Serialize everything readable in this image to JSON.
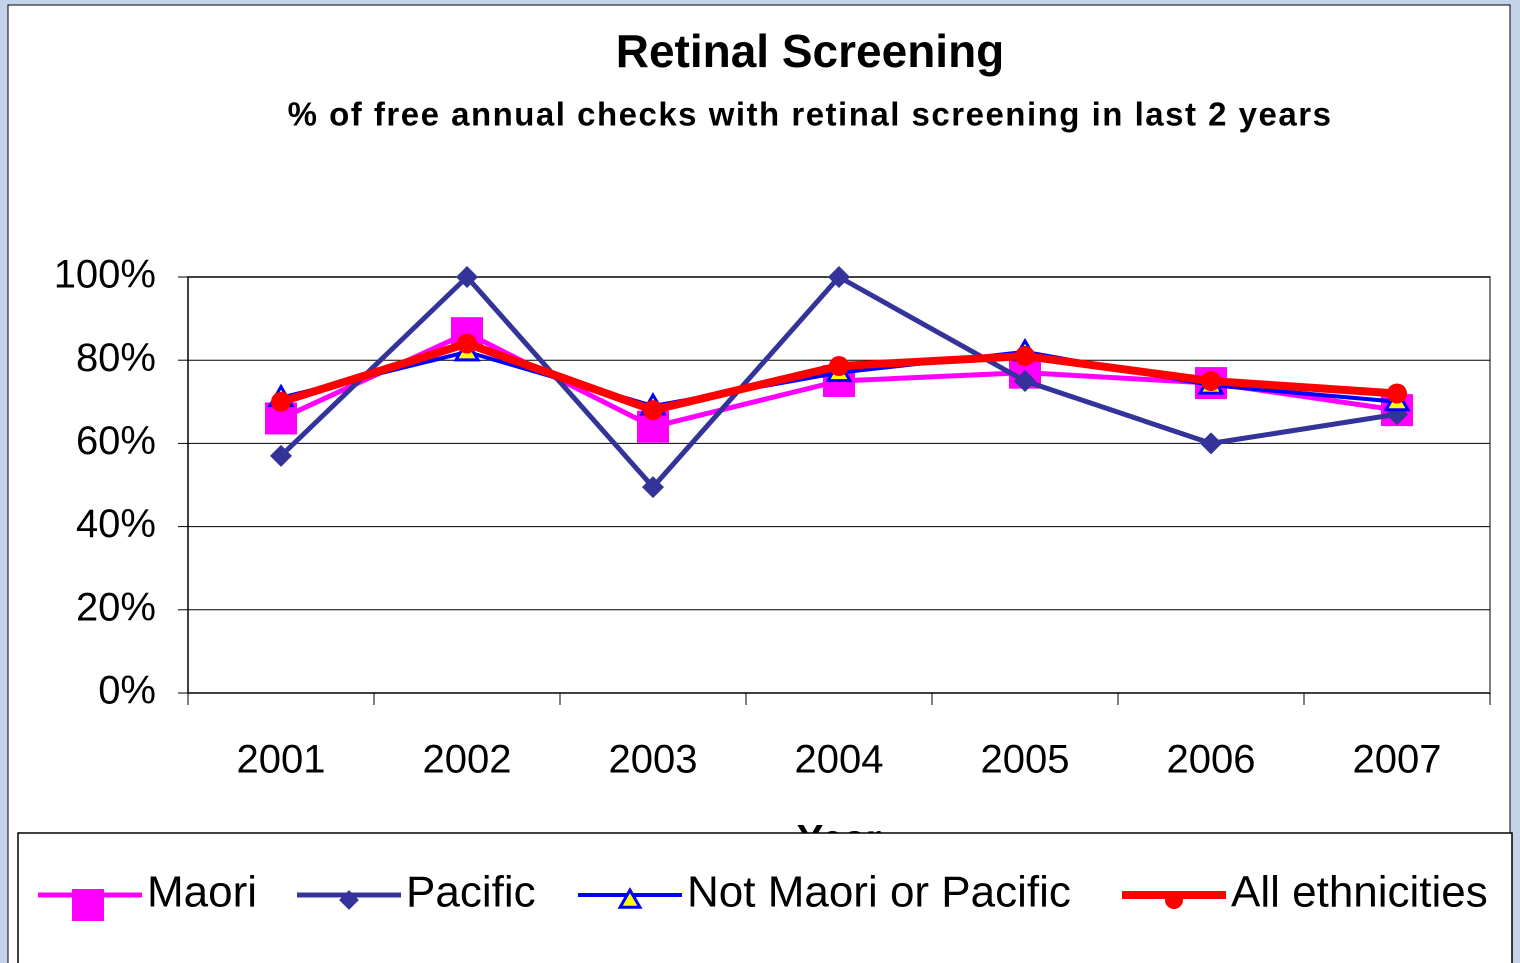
{
  "chart_data": {
    "type": "line",
    "title": "Retinal Screening",
    "subtitle": "% of free annual checks with retinal screening in last 2 years",
    "x_label": "Year",
    "categories": [
      "2001",
      "2002",
      "2003",
      "2004",
      "2005",
      "2006",
      "2007"
    ],
    "series": [
      {
        "name": "Maori",
        "color": "#ff00ff",
        "marker": "square",
        "values": [
          66,
          86.5,
          64,
          75,
          77,
          74.5,
          68
        ]
      },
      {
        "name": "Pacific",
        "color": "#333399",
        "marker": "diamond",
        "values": [
          57,
          100,
          49.5,
          100,
          75,
          60,
          67
        ]
      },
      {
        "name": "Not Maori or Pacific",
        "color": "#0000ff",
        "marker": "triangle",
        "values": [
          71,
          82,
          69,
          77,
          82,
          74,
          70
        ]
      },
      {
        "name": "All ethnicities",
        "color": "#ff0000",
        "marker": "circle",
        "values": [
          70,
          84,
          68,
          78.6,
          81,
          75,
          72
        ]
      }
    ],
    "ylim": [
      0,
      100
    ],
    "yticks": [
      {
        "value": 0,
        "label": "0%"
      },
      {
        "value": 20,
        "label": "20%"
      },
      {
        "value": 40,
        "label": "40%"
      },
      {
        "value": 60,
        "label": "60%"
      },
      {
        "value": 80,
        "label": "80%"
      },
      {
        "value": 100,
        "label": "100%"
      }
    ],
    "grid": true,
    "legend": "bottom"
  }
}
